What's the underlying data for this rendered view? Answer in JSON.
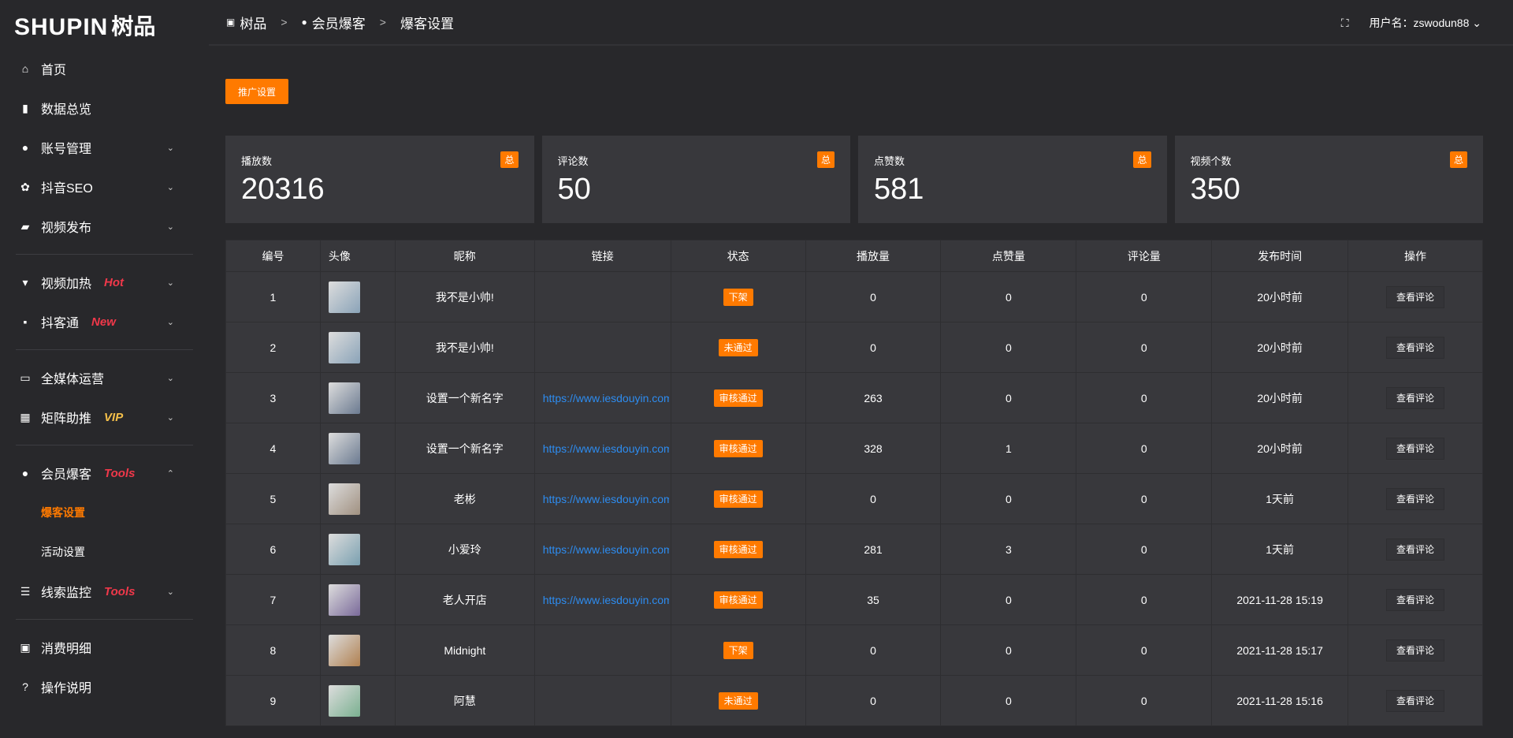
{
  "logo": {
    "en": "SHUPIN",
    "cn": "树品"
  },
  "sidebar": {
    "items": [
      {
        "icon": "home-icon",
        "glyph": "⌂",
        "label": "首页"
      },
      {
        "icon": "bar-chart-icon",
        "glyph": "▮",
        "label": "数据总览"
      },
      {
        "icon": "user-icon",
        "glyph": "●",
        "label": "账号管理",
        "chev": "⌄"
      },
      {
        "icon": "gear-icon",
        "glyph": "✿",
        "label": "抖音SEO",
        "chev": "⌄"
      },
      {
        "icon": "camera-icon",
        "glyph": "▰",
        "label": "视频发布",
        "chev": "⌄"
      },
      {
        "icon": "flame-sign-icon",
        "glyph": "▾",
        "label": "视频加热",
        "tag": "Hot",
        "chev": "⌄"
      },
      {
        "icon": "chat-icon",
        "glyph": "▪",
        "label": "抖客通",
        "tag": "New",
        "chev": "⌄"
      },
      {
        "icon": "monitor-icon",
        "glyph": "▭",
        "label": "全媒体运营",
        "chev": "⌄"
      },
      {
        "icon": "grid-icon",
        "glyph": "▦",
        "label": "矩阵助推",
        "tag": "VIP",
        "chev": "⌄"
      },
      {
        "icon": "user-icon",
        "glyph": "●",
        "label": "会员爆客",
        "tag": "Tools",
        "chev": "⌃"
      },
      {
        "icon": "sliders-icon",
        "glyph": "☰",
        "label": "线索监控",
        "tag": "Tools",
        "chev": "⌄"
      },
      {
        "icon": "wallet-icon",
        "glyph": "▣",
        "label": "消费明细"
      },
      {
        "icon": "help-icon",
        "glyph": "?",
        "label": "操作说明"
      }
    ],
    "subitems": [
      {
        "label": "爆客设置",
        "active": true
      },
      {
        "label": "活动设置"
      }
    ]
  },
  "header": {
    "breadcrumb": [
      "树品",
      "会员爆客",
      "爆客设置"
    ],
    "separator": ">",
    "username": "用户名：zswodun88"
  },
  "promo_button": "推广设置",
  "cards": [
    {
      "label": "播放数",
      "value": "20316",
      "badge": "总"
    },
    {
      "label": "评论数",
      "value": "50",
      "badge": "总"
    },
    {
      "label": "点赞数",
      "value": "581",
      "badge": "总"
    },
    {
      "label": "视频个数",
      "value": "350",
      "badge": "总"
    }
  ],
  "table": {
    "columns": [
      "编号",
      "头像",
      "昵称",
      "链接",
      "状态",
      "播放量",
      "点赞量",
      "评论量",
      "发布时间",
      "操作"
    ],
    "rows": [
      {
        "id": "1",
        "name": "我不是小帅!",
        "link": "",
        "status": "下架",
        "plays": "0",
        "likes": "0",
        "comments": "0",
        "time": "20小时前",
        "action": "查看评论",
        "avatar_color": "#8aa3b8"
      },
      {
        "id": "2",
        "name": "我不是小帅!",
        "link": "",
        "status": "未通过",
        "plays": "0",
        "likes": "0",
        "comments": "0",
        "time": "20小时前",
        "action": "查看评论",
        "avatar_color": "#8aa3b8"
      },
      {
        "id": "3",
        "name": "设置一个新名字",
        "link": "https://www.iesdouyin.com",
        "status": "审核通过",
        "plays": "263",
        "likes": "0",
        "comments": "0",
        "time": "20小时前",
        "action": "查看评论",
        "avatar_color": "#6b7a90"
      },
      {
        "id": "4",
        "name": "设置一个新名字",
        "link": "https://www.iesdouyin.com",
        "status": "审核通过",
        "plays": "328",
        "likes": "1",
        "comments": "0",
        "time": "20小时前",
        "action": "查看评论",
        "avatar_color": "#6b7a90"
      },
      {
        "id": "5",
        "name": "老彬",
        "link": "https://www.iesdouyin.com",
        "status": "审核通过",
        "plays": "0",
        "likes": "0",
        "comments": "0",
        "time": "1天前",
        "action": "查看评论",
        "avatar_color": "#a09080"
      },
      {
        "id": "6",
        "name": "小爱玲",
        "link": "https://www.iesdouyin.com",
        "status": "审核通过",
        "plays": "281",
        "likes": "3",
        "comments": "0",
        "time": "1天前",
        "action": "查看评论",
        "avatar_color": "#7aa0b0"
      },
      {
        "id": "7",
        "name": "老人开店",
        "link": "https://www.iesdouyin.com",
        "status": "审核通过",
        "plays": "35",
        "likes": "0",
        "comments": "0",
        "time": "2021-11-28 15:19",
        "action": "查看评论",
        "avatar_color": "#7a6a9a"
      },
      {
        "id": "8",
        "name": "Midnight",
        "link": "",
        "status": "下架",
        "plays": "0",
        "likes": "0",
        "comments": "0",
        "time": "2021-11-28 15:17",
        "action": "查看评论",
        "avatar_color": "#b08050"
      },
      {
        "id": "9",
        "name": "阿慧",
        "link": "",
        "status": "未通过",
        "plays": "0",
        "likes": "0",
        "comments": "0",
        "time": "2021-11-28 15:16",
        "action": "查看评论",
        "avatar_color": "#7ab090"
      }
    ]
  },
  "colors": {
    "accent": "#ff7a00",
    "link": "#2d8cf0",
    "tag_red": "#f0384a",
    "tag_vip": "#f5c04a"
  }
}
